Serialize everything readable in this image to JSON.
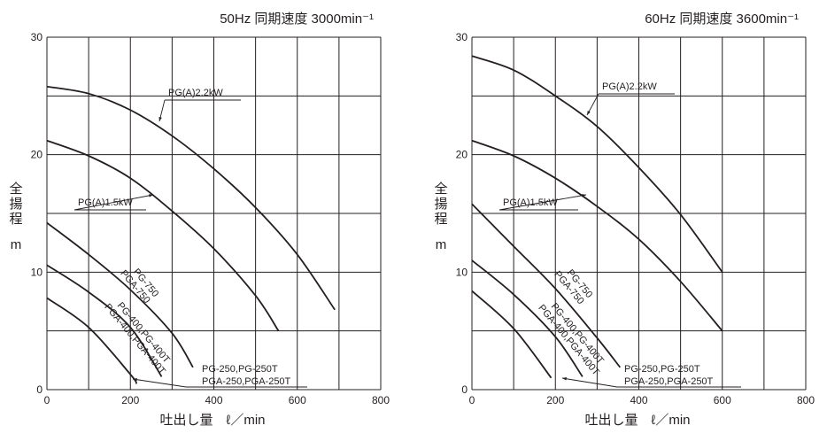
{
  "chart_data": [
    {
      "type": "line",
      "title": "50Hz 同期速度 3000min⁻¹",
      "xlabel": "吐出し量　ℓ／min",
      "ylabel": "全揚程",
      "ylabel_unit": "m",
      "xlim": [
        0,
        800
      ],
      "ylim": [
        0,
        30
      ],
      "x_ticks": [
        "0",
        "200",
        "400",
        "600",
        "800"
      ],
      "y_ticks": [
        "0",
        "10",
        "20",
        "30"
      ],
      "grid": true,
      "series": [
        {
          "name": "PG(A)2.2kW",
          "labels": [
            "PG(A)2.2kW"
          ],
          "x": [
            0,
            100,
            200,
            300,
            400,
            500,
            600,
            690
          ],
          "y": [
            25.8,
            25.2,
            23.8,
            21.6,
            18.8,
            15.5,
            11.5,
            6.8
          ]
        },
        {
          "name": "PG(A)1.5kW",
          "labels": [
            "PG(A)1.5kW"
          ],
          "x": [
            0,
            100,
            200,
            300,
            400,
            500,
            555
          ],
          "y": [
            21.2,
            19.9,
            18.0,
            15.2,
            12.0,
            8.0,
            5.0
          ]
        },
        {
          "name": "PG-750 / PGA-750",
          "labels": [
            "PG-750",
            "PGA-750"
          ],
          "x": [
            0,
            100,
            200,
            300,
            350
          ],
          "y": [
            14.2,
            11.5,
            8.5,
            4.8,
            1.9
          ]
        },
        {
          "name": "PG-400,PG-400T / PGA-400,PGA-400T",
          "labels": [
            "PG-400,PG-400T",
            "PGA-400,PGA-400T"
          ],
          "x": [
            0,
            100,
            200,
            275
          ],
          "y": [
            10.6,
            8.3,
            5.3,
            1.1
          ]
        },
        {
          "name": "PG-250,PG-250T / PGA-250,PGA-250T",
          "labels": [
            "PG-250,PG-250T",
            "PGA-250,PGA-250T"
          ],
          "x": [
            0,
            100,
            200,
            215
          ],
          "y": [
            7.8,
            5.3,
            1.3,
            0.5
          ]
        }
      ]
    },
    {
      "type": "line",
      "title": "60Hz 同期速度 3600min⁻¹",
      "xlabel": "吐出し量　ℓ／min",
      "ylabel": "全揚程",
      "ylabel_unit": "m",
      "xlim": [
        0,
        800
      ],
      "ylim": [
        0,
        30
      ],
      "x_ticks": [
        "0",
        "200",
        "400",
        "600",
        "800"
      ],
      "y_ticks": [
        "0",
        "10",
        "20",
        "30"
      ],
      "grid": true,
      "series": [
        {
          "name": "PG(A)2.2kW",
          "labels": [
            "PG(A)2.2kW"
          ],
          "x": [
            0,
            100,
            200,
            300,
            400,
            500,
            600
          ],
          "y": [
            28.4,
            27.2,
            25.0,
            22.4,
            18.9,
            14.9,
            10.0
          ]
        },
        {
          "name": "PG(A)1.5kW",
          "labels": [
            "PG(A)1.5kW"
          ],
          "x": [
            0,
            100,
            200,
            300,
            400,
            500,
            600
          ],
          "y": [
            21.2,
            19.9,
            18.0,
            15.6,
            12.8,
            9.2,
            5.0
          ]
        },
        {
          "name": "PG-750 / PGA-750",
          "labels": [
            "PG-750",
            "PGA-750"
          ],
          "x": [
            0,
            100,
            200,
            300,
            355
          ],
          "y": [
            15.8,
            12.2,
            8.6,
            4.4,
            1.9
          ]
        },
        {
          "name": "PG-400,PG-400T / PGA-400,PGA-400T",
          "labels": [
            "PG-400,PG-400T",
            "PGA-400,PGA-400T"
          ],
          "x": [
            0,
            100,
            200,
            265
          ],
          "y": [
            11.0,
            8.1,
            4.5,
            1.1
          ]
        },
        {
          "name": "PG-250,PG-250T / PGA-250,PGA-250T",
          "labels": [
            "PG-250,PG-250T",
            "PGA-250,PGA-250T"
          ],
          "x": [
            0,
            100,
            190
          ],
          "y": [
            8.4,
            5.2,
            1.0
          ]
        }
      ]
    }
  ]
}
